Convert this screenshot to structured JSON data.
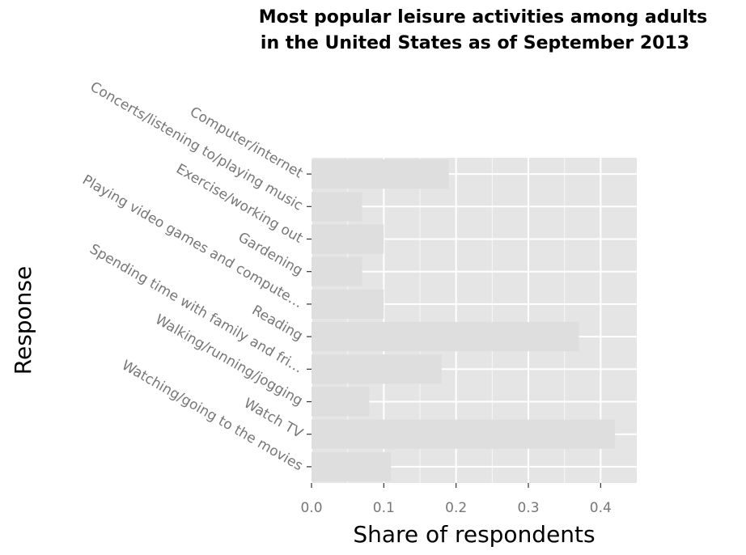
{
  "chart_data": {
    "type": "bar",
    "orientation": "horizontal",
    "title": "Most popular leisure activities among adults in the United States as of September 2013",
    "title_lines": [
      "Most popular leisure activities among adults",
      "in the United States as of September 2013"
    ],
    "xlabel": "Share of respondents",
    "ylabel": "Response",
    "categories": [
      "Computer/internet",
      "Concerts/listening to/playing music",
      "Exercise/working out",
      "Gardening",
      "Playing video games and compute…",
      "Reading",
      "Spending time with family and fri…",
      "Walking/running/jogging",
      "Watch TV",
      "Watching/going to the movies"
    ],
    "values": [
      0.19,
      0.07,
      0.1,
      0.07,
      0.1,
      0.37,
      0.18,
      0.08,
      0.42,
      0.11
    ],
    "xlim": [
      0,
      0.45
    ],
    "xticks": [
      0.0,
      0.1,
      0.2,
      0.3,
      0.4
    ],
    "xtick_labels": [
      "0.0",
      "0.1",
      "0.2",
      "0.3",
      "0.4"
    ],
    "grid": true,
    "colors": {
      "panel": "#e5e5e5",
      "bar": "#dedede",
      "grid": "#ffffff",
      "tick_text": "#777777",
      "tick_mark": "#333333"
    }
  }
}
